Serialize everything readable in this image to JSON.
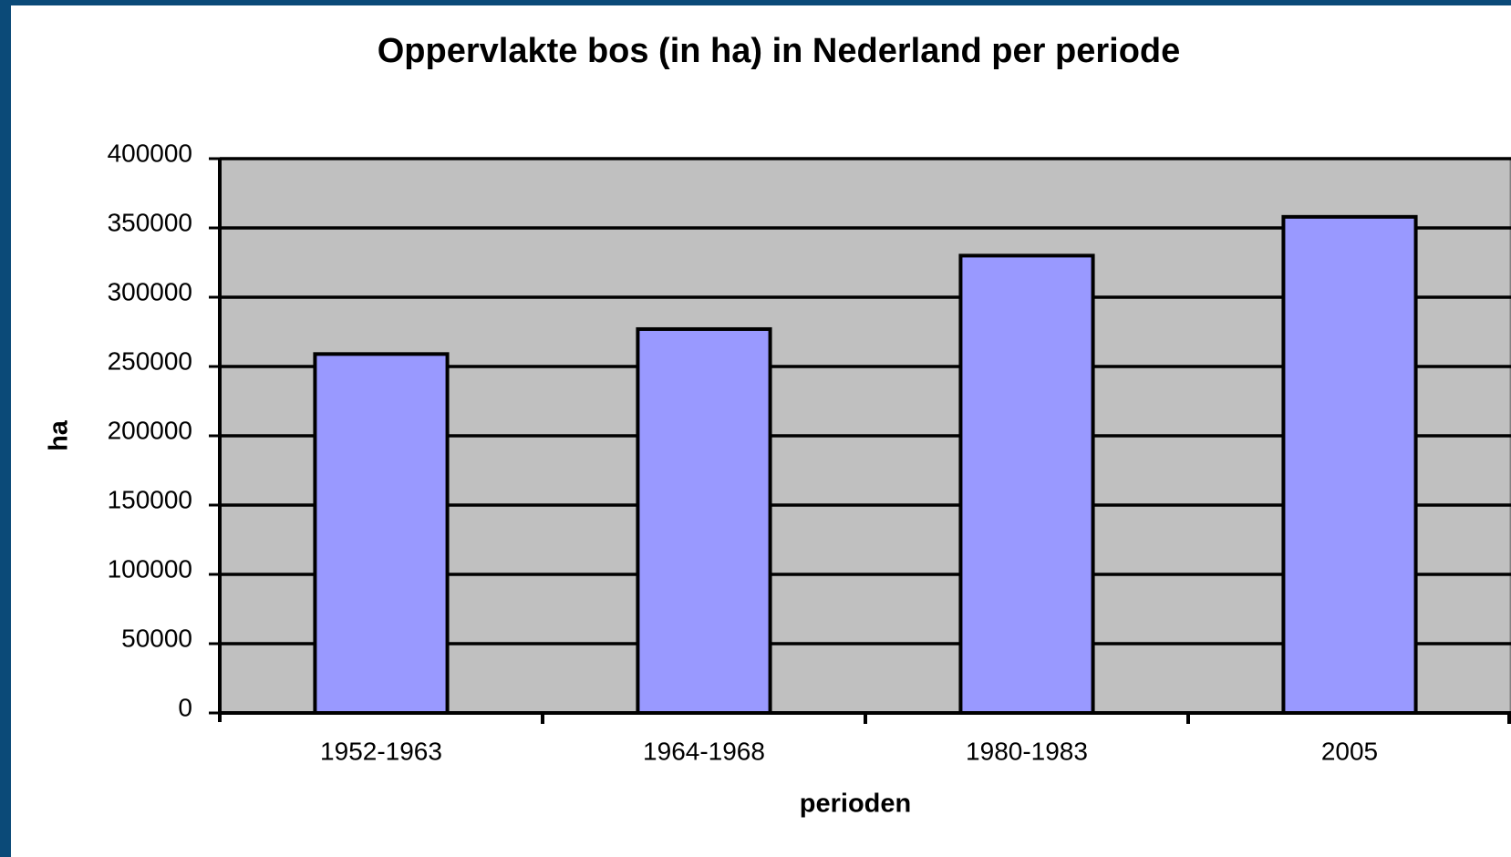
{
  "chart_data": {
    "type": "bar",
    "title": "Oppervlakte bos (in ha) in Nederland per periode",
    "x_label": "perioden",
    "y_label": "ha",
    "categories": [
      "1952-1963",
      "1964-1968",
      "1980-1983",
      "2005"
    ],
    "values": [
      259000,
      277000,
      330000,
      358000
    ],
    "color": "#9999ff",
    "ylim": [
      0,
      400000
    ],
    "yticks": [
      0,
      50000,
      100000,
      150000,
      200000,
      250000,
      300000,
      350000,
      400000
    ],
    "grid": true
  }
}
